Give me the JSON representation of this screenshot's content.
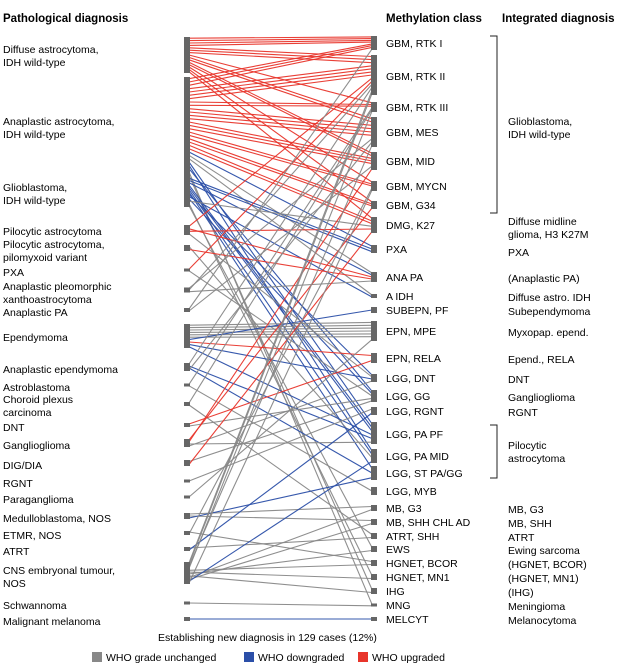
{
  "headers": {
    "left": "Pathological diagnosis",
    "middle": "Methylation class",
    "right": "Integrated diagnosis"
  },
  "pathological": [
    {
      "key": "da",
      "lines": [
        "Diffuse astrocytoma,",
        "IDH wild-type"
      ]
    },
    {
      "key": "aa",
      "lines": [
        "Anaplastic astrocytoma,",
        "IDH wild-type"
      ]
    },
    {
      "key": "gbm",
      "lines": [
        "Glioblastoma,",
        "IDH wild-type"
      ]
    },
    {
      "key": "pa",
      "lines": [
        "Pilocytic astrocytoma"
      ]
    },
    {
      "key": "pma",
      "lines": [
        "Pilocytic astrocytoma,",
        "pilomyxoid variant"
      ]
    },
    {
      "key": "pxa",
      "lines": [
        "PXA"
      ]
    },
    {
      "key": "apxa",
      "lines": [
        "Anaplastic pleomorphic",
        "xanthoastrocytoma"
      ]
    },
    {
      "key": "apa",
      "lines": [
        "Anaplastic PA"
      ]
    },
    {
      "key": "epn",
      "lines": [
        "Ependymoma"
      ]
    },
    {
      "key": "aepn",
      "lines": [
        "Anaplastic ependymoma"
      ]
    },
    {
      "key": "astb",
      "lines": [
        "Astroblastoma"
      ]
    },
    {
      "key": "cpc",
      "lines": [
        "Choroid plexus",
        "carcinoma"
      ]
    },
    {
      "key": "dnt",
      "lines": [
        "DNT"
      ]
    },
    {
      "key": "gg",
      "lines": [
        "Ganglioglioma"
      ]
    },
    {
      "key": "dig",
      "lines": [
        "DIG/DIA"
      ]
    },
    {
      "key": "rgnt",
      "lines": [
        "RGNT"
      ]
    },
    {
      "key": "pgl",
      "lines": [
        "Paraganglioma"
      ]
    },
    {
      "key": "mb",
      "lines": [
        "Medulloblastoma, NOS"
      ]
    },
    {
      "key": "etmr",
      "lines": [
        "ETMR, NOS"
      ]
    },
    {
      "key": "atrt",
      "lines": [
        "ATRT"
      ]
    },
    {
      "key": "cns",
      "lines": [
        "CNS embryonal tumour,",
        "NOS"
      ]
    },
    {
      "key": "schw",
      "lines": [
        "Schwannoma"
      ]
    },
    {
      "key": "mm",
      "lines": [
        "Malignant melanoma"
      ]
    }
  ],
  "methylation": [
    "GBM, RTK I",
    "GBM, RTK II",
    "GBM, RTK III",
    "GBM, MES",
    "GBM, MID",
    "GBM, MYCN",
    "GBM, G34",
    "DMG, K27",
    "PXA",
    "ANA PA",
    "A IDH",
    "SUBEPN, PF",
    "EPN, MPE",
    "EPN, RELA",
    "LGG, DNT",
    "LGG, GG",
    "LGG, RGNT",
    "LGG, PA PF",
    "LGG, PA MID",
    "LGG, ST PA/GG",
    "LGG, MYB",
    "MB, G3",
    "MB, SHH CHL AD",
    "ATRT, SHH",
    "EWS",
    "HGNET, BCOR",
    "HGNET, MN1",
    "IHG",
    "MNG",
    "MELCYT"
  ],
  "integrated": [
    {
      "lines": [
        "Glioblastoma,",
        "IDH wild-type"
      ]
    },
    {
      "lines": [
        "Diffuse midline",
        "glioma, H3 K27M"
      ]
    },
    {
      "lines": [
        "PXA"
      ]
    },
    {
      "lines": [
        "(Anaplastic PA)"
      ]
    },
    {
      "lines": [
        "Diffuse astro. IDH"
      ]
    },
    {
      "lines": [
        "Subependymoma"
      ]
    },
    {
      "lines": [
        "Myxopap. epend."
      ]
    },
    {
      "lines": [
        "Epend., RELA"
      ]
    },
    {
      "lines": [
        "DNT"
      ]
    },
    {
      "lines": [
        "Ganglioglioma"
      ]
    },
    {
      "lines": [
        "RGNT"
      ]
    },
    {
      "lines": [
        "Pilocytic",
        "astrocytoma"
      ]
    },
    {
      "lines": [
        "MB, G3"
      ]
    },
    {
      "lines": [
        "MB, SHH"
      ]
    },
    {
      "lines": [
        "ATRT"
      ]
    },
    {
      "lines": [
        "Ewing sarcoma"
      ]
    },
    {
      "lines": [
        "(HGNET, BCOR)"
      ]
    },
    {
      "lines": [
        "(HGNET, MN1)"
      ]
    },
    {
      "lines": [
        "(IHG)"
      ]
    },
    {
      "lines": [
        "Meningioma"
      ]
    },
    {
      "lines": [
        "Melanocytoma"
      ]
    }
  ],
  "caption": "Establishing new diagnosis in 129 cases (12%)",
  "legend": [
    {
      "label": "WHO grade unchanged",
      "color": "#888888"
    },
    {
      "label": "WHO downgraded",
      "color": "#2b4fa8"
    },
    {
      "label": "WHO upgraded",
      "color": "#e8352b"
    }
  ],
  "colors": {
    "unchanged": "#888888",
    "downgraded": "#2b4fa8",
    "upgraded": "#e8352b",
    "node": "#666666"
  },
  "links": [
    [
      "da",
      "GBM, RTK I",
      "up",
      4
    ],
    [
      "da",
      "GBM, RTK II",
      "up",
      3
    ],
    [
      "da",
      "GBM, RTK III",
      "up",
      1
    ],
    [
      "da",
      "GBM, MES",
      "up",
      2
    ],
    [
      "da",
      "GBM, MID",
      "up",
      2
    ],
    [
      "da",
      "GBM, MYCN",
      "up",
      1
    ],
    [
      "da",
      "GBM, G34",
      "up",
      1
    ],
    [
      "da",
      "DMG, K27",
      "up",
      1
    ],
    [
      "aa",
      "GBM, RTK I",
      "up",
      3
    ],
    [
      "aa",
      "GBM, RTK II",
      "up",
      4
    ],
    [
      "aa",
      "GBM, RTK III",
      "up",
      2
    ],
    [
      "aa",
      "GBM, MES",
      "up",
      4
    ],
    [
      "aa",
      "GBM, MID",
      "up",
      3
    ],
    [
      "aa",
      "GBM, MYCN",
      "up",
      2
    ],
    [
      "aa",
      "GBM, G34",
      "up",
      2
    ],
    [
      "aa",
      "DMG, K27",
      "up",
      2
    ],
    [
      "aa",
      "PXA",
      "down",
      1
    ],
    [
      "aa",
      "ANA PA",
      "same",
      1
    ],
    [
      "aa",
      "A IDH",
      "same",
      1
    ],
    [
      "aa",
      "LGG, PA PF",
      "down",
      1
    ],
    [
      "aa",
      "LGG, PA MID",
      "down",
      1
    ],
    [
      "aa",
      "LGG, GG",
      "down",
      1
    ],
    [
      "aa",
      "MNG",
      "same",
      1
    ],
    [
      "aa",
      "IHG",
      "same",
      1
    ],
    [
      "gbm",
      "PXA",
      "down",
      2
    ],
    [
      "gbm",
      "ANA PA",
      "down",
      1
    ],
    [
      "gbm",
      "LGG, PA PF",
      "down",
      2
    ],
    [
      "gbm",
      "LGG, PA MID",
      "down",
      1
    ],
    [
      "gbm",
      "LGG, ST PA/GG",
      "down",
      1
    ],
    [
      "gbm",
      "LGG, DNT",
      "down",
      1
    ],
    [
      "gbm",
      "A IDH",
      "down",
      1
    ],
    [
      "gbm",
      "LGG, GG",
      "down",
      1
    ],
    [
      "gbm",
      "DMG, K27",
      "same",
      1
    ],
    [
      "gbm",
      "HGNET, MN1",
      "same",
      1
    ],
    [
      "gbm",
      "EWS",
      "same",
      1
    ],
    [
      "pa",
      "GBM, RTK II",
      "up",
      1
    ],
    [
      "pa",
      "ANA PA",
      "up",
      1
    ],
    [
      "pa",
      "DMG, K27",
      "up",
      1
    ],
    [
      "pa",
      "LGG, DNT",
      "same",
      1
    ],
    [
      "pma",
      "LGG, PA MID",
      "same",
      1
    ],
    [
      "pma",
      "ANA PA",
      "up",
      1
    ],
    [
      "pxa",
      "GBM, RTK II",
      "up",
      1
    ],
    [
      "pxa",
      "LGG, GG",
      "same",
      1
    ],
    [
      "apxa",
      "GBM, MES",
      "same",
      1
    ],
    [
      "apxa",
      "GBM, RTK II",
      "same",
      1
    ],
    [
      "apxa",
      "ANA PA",
      "same",
      1
    ],
    [
      "apa",
      "GBM, RTK I",
      "same",
      1
    ],
    [
      "apa",
      "GBM, MID",
      "same",
      1
    ],
    [
      "epn",
      "EPN, MPE",
      "same",
      6
    ],
    [
      "epn",
      "SUBEPN, PF",
      "down",
      1
    ],
    [
      "epn",
      "EPN, RELA",
      "up",
      1
    ],
    [
      "epn",
      "LGG, DNT",
      "down",
      1
    ],
    [
      "epn",
      "LGG, PA PF",
      "down",
      1
    ],
    [
      "aepn",
      "GBM, RTK II",
      "same",
      1
    ],
    [
      "aepn",
      "LGG, PA PF",
      "down",
      1
    ],
    [
      "aepn",
      "LGG, ST PA/GG",
      "down",
      1
    ],
    [
      "aepn",
      "GBM, MES",
      "same",
      1
    ],
    [
      "astb",
      "GBM, RTK III",
      "same",
      1
    ],
    [
      "astb",
      "LGG, MYB",
      "same",
      1
    ],
    [
      "cpc",
      "GBM, RTK III",
      "same",
      1
    ],
    [
      "cpc",
      "ATRT, SHH",
      "same",
      1
    ],
    [
      "dnt",
      "EPN, RELA",
      "up",
      1
    ],
    [
      "dnt",
      "LGG, GG",
      "same",
      1
    ],
    [
      "gg",
      "GBM, G34",
      "up",
      1
    ],
    [
      "gg",
      "GBM, MID",
      "up",
      1
    ],
    [
      "gg",
      "LGG, PA PF",
      "same",
      1
    ],
    [
      "gg",
      "LGG, DNT",
      "same",
      1
    ],
    [
      "dig",
      "LGG, GG",
      "same",
      1
    ],
    [
      "dig",
      "DMG, K27",
      "up",
      1
    ],
    [
      "rgnt",
      "LGG, RGNT",
      "same",
      1
    ],
    [
      "pgl",
      "EPN, MPE",
      "same",
      1
    ],
    [
      "mb",
      "MB, G3",
      "same",
      1
    ],
    [
      "mb",
      "MB, SHH CHL AD",
      "same",
      1
    ],
    [
      "mb",
      "LGG, ST PA/GG",
      "down",
      1
    ],
    [
      "etmr",
      "HGNET, BCOR",
      "same",
      1
    ],
    [
      "etmr",
      "GBM, MYCN",
      "same",
      1
    ],
    [
      "atrt",
      "ATRT, SHH",
      "same",
      1
    ],
    [
      "atrt",
      "LGG, RGNT",
      "down",
      1
    ],
    [
      "cns",
      "GBM, RTK II",
      "same",
      2
    ],
    [
      "cns",
      "GBM, MES",
      "same",
      1
    ],
    [
      "cns",
      "GBM, RTK III",
      "same",
      1
    ],
    [
      "cns",
      "HGNET, BCOR",
      "same",
      1
    ],
    [
      "cns",
      "HGNET, MN1",
      "same",
      1
    ],
    [
      "cns",
      "EWS",
      "same",
      1
    ],
    [
      "cns",
      "IHG",
      "same",
      1
    ],
    [
      "cns",
      "MB, G3",
      "same",
      1
    ],
    [
      "cns",
      "MB, SHH CHL AD",
      "same",
      1
    ],
    [
      "cns",
      "LGG, PA MID",
      "down",
      1
    ],
    [
      "cns",
      "GBM, MYCN",
      "same",
      1
    ],
    [
      "schw",
      "MNG",
      "same",
      1
    ],
    [
      "mm",
      "MELCYT",
      "down",
      1
    ]
  ]
}
